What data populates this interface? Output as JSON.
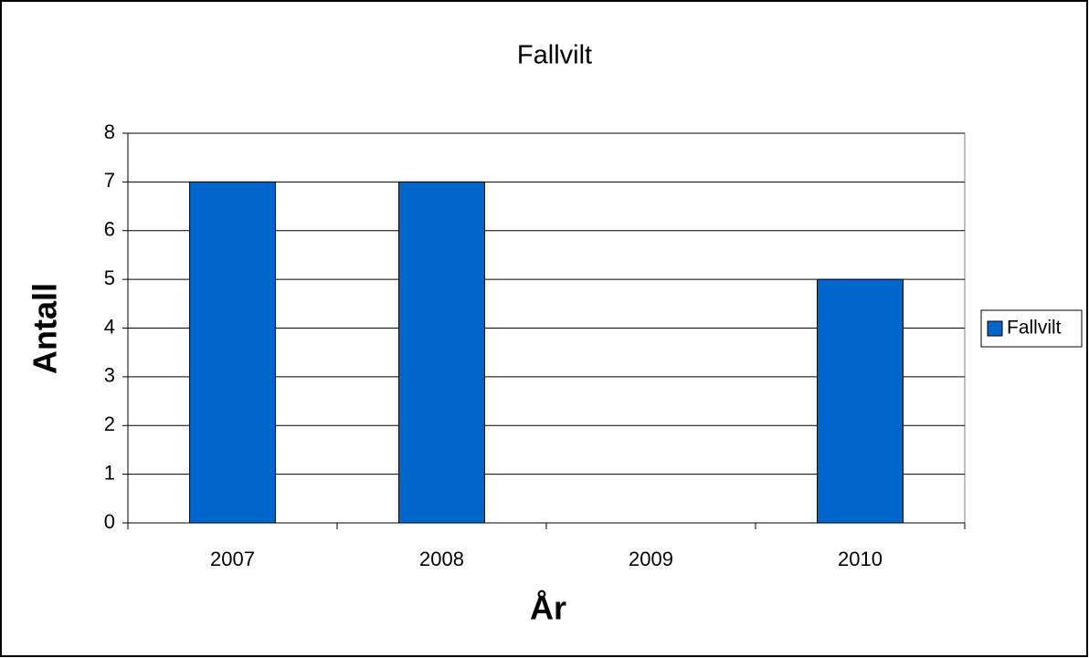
{
  "chart_data": {
    "type": "bar",
    "title": "Fallvilt",
    "x_label": "År",
    "y_label": "Antall",
    "categories": [
      "2007",
      "2008",
      "2009",
      "2010"
    ],
    "series": [
      {
        "name": "Fallvilt",
        "color": "#0066cc",
        "values": [
          7,
          7,
          0,
          5
        ]
      }
    ],
    "ylim": [
      0,
      8
    ],
    "yticks": [
      0,
      1,
      2,
      3,
      4,
      5,
      6,
      7,
      8
    ],
    "grid": true,
    "legend": "right"
  }
}
